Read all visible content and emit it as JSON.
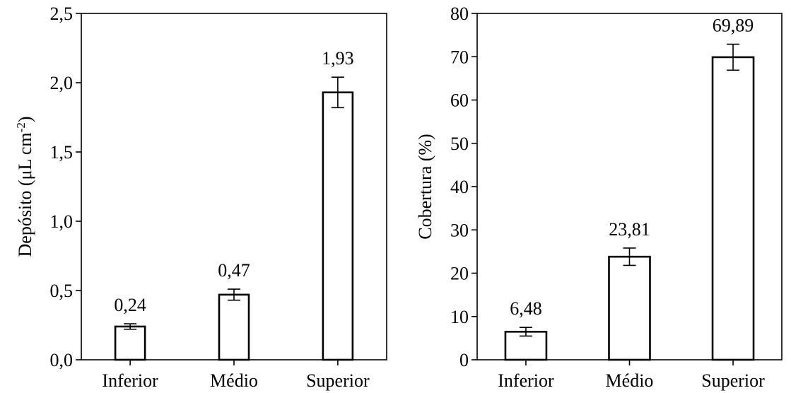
{
  "chart_data": [
    {
      "type": "bar",
      "categories": [
        "Inferior",
        "Médio",
        "Superior"
      ],
      "values": [
        0.24,
        0.47,
        1.93
      ],
      "error": [
        0.02,
        0.04,
        0.11
      ],
      "value_labels": [
        "0,24",
        "0,47",
        "1,93"
      ],
      "ylabel": "Depósito (μL cm",
      "ylabel_superscript": "-2",
      "ylabel_suffix": ")",
      "ylim": [
        0,
        2.5
      ],
      "yticks": [
        0,
        0.5,
        1.0,
        1.5,
        2.0,
        2.5
      ],
      "ytick_labels": [
        "0,0",
        "0,5",
        "1,0",
        "1,5",
        "2,0",
        "2,5"
      ]
    },
    {
      "type": "bar",
      "categories": [
        "Inferior",
        "Médio",
        "Superior"
      ],
      "values": [
        6.48,
        23.81,
        69.89
      ],
      "error": [
        1.0,
        2.0,
        3.0
      ],
      "value_labels": [
        "6,48",
        "23,81",
        "69,89"
      ],
      "ylabel": "Cobertura (%)",
      "ylim": [
        0,
        80
      ],
      "yticks": [
        0,
        10,
        20,
        30,
        40,
        50,
        60,
        70,
        80
      ],
      "ytick_labels": [
        "0",
        "10",
        "20",
        "30",
        "40",
        "50",
        "60",
        "70",
        "80"
      ]
    }
  ]
}
